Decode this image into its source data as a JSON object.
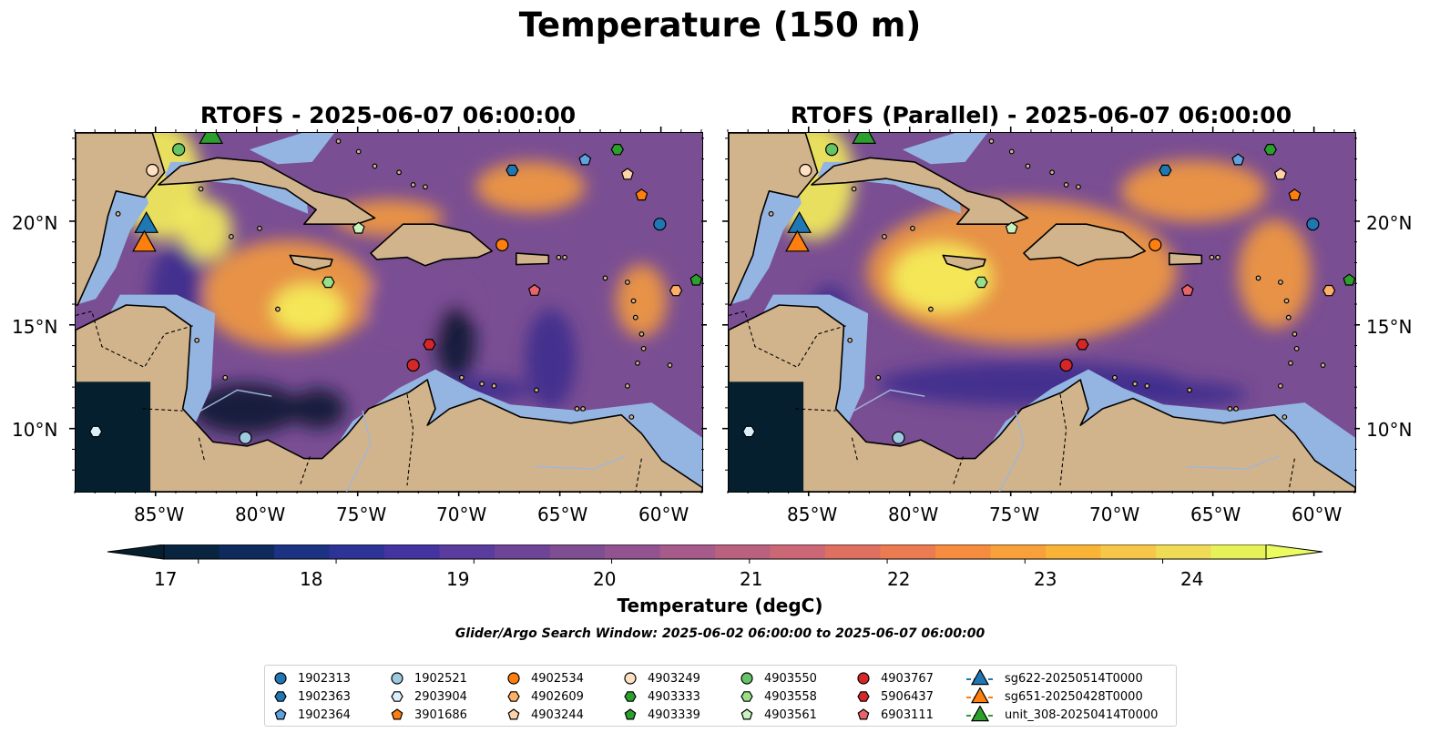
{
  "figure": {
    "suptitle": "Temperature (150 m)",
    "panels": [
      {
        "title": "RTOFS - 2025-06-07 06:00:00",
        "variant": "rtofs"
      },
      {
        "title": "RTOFS (Parallel) - 2025-06-07 06:00:00",
        "variant": "parallel"
      }
    ],
    "x_tick_labels": [
      "85°W",
      "80°W",
      "75°W",
      "70°W",
      "65°W",
      "60°W"
    ],
    "y_tick_labels": [
      "20°N",
      "15°N",
      "10°N"
    ],
    "colorbar": {
      "title": "Temperature (degC)",
      "tick_labels": [
        "17",
        "18",
        "19",
        "20",
        "21",
        "22",
        "23",
        "24"
      ],
      "colors": [
        "#08243f",
        "#0f2a5c",
        "#1c3282",
        "#2e3396",
        "#43349f",
        "#5a3b9e",
        "#6e4496",
        "#7f4d91",
        "#925490",
        "#a65b8a",
        "#b9617f",
        "#cc6875",
        "#de7062",
        "#ec7b51",
        "#f58c40",
        "#f8a039",
        "#f9b437",
        "#f6c748",
        "#f0db56",
        "#e6f258"
      ],
      "extend_low": "#061f2e",
      "extend_high": "#eafc5f"
    },
    "search_window": "Glider/Argo Search Window: 2025-06-02 06:00:00 to 2025-06-07 06:00:00"
  },
  "map": {
    "lon_range": [
      -89,
      -58
    ],
    "lat_range": [
      7,
      24.3
    ],
    "ocean_colors": {
      "deep": "#7a4e93",
      "warm": "#f39a3d",
      "hot": "#f5ef5a",
      "cold": "#0a1a33",
      "coolish": "#3d2f8e"
    },
    "shelf_color": "#94b5e2",
    "land_color": "#d2b48c"
  },
  "legend": {
    "items": [
      {
        "label": "1902313",
        "marker": "circle",
        "color": "#1f77b4"
      },
      {
        "label": "1902363",
        "marker": "hexagon",
        "color": "#1f77b4"
      },
      {
        "label": "1902364",
        "marker": "pentagon",
        "color": "#5fa2dd"
      },
      {
        "label": "1902521",
        "marker": "circle",
        "color": "#9ecae1"
      },
      {
        "label": "2903904",
        "marker": "hexagon",
        "color": "#dbeefb"
      },
      {
        "label": "3901686",
        "marker": "pentagon",
        "color": "#ff7f0e"
      },
      {
        "label": "4902534",
        "marker": "circle",
        "color": "#ff7f0e"
      },
      {
        "label": "4902609",
        "marker": "hexagon",
        "color": "#ffb064"
      },
      {
        "label": "4903244",
        "marker": "pentagon",
        "color": "#ffd3a8"
      },
      {
        "label": "4903249",
        "marker": "circle",
        "color": "#ffe0c2"
      },
      {
        "label": "4903333",
        "marker": "hexagon",
        "color": "#2ca02c"
      },
      {
        "label": "4903339",
        "marker": "pentagon",
        "color": "#2ca02c"
      },
      {
        "label": "4903550",
        "marker": "circle",
        "color": "#66c466"
      },
      {
        "label": "4903558",
        "marker": "hexagon",
        "color": "#98df8a"
      },
      {
        "label": "4903561",
        "marker": "pentagon",
        "color": "#c9f2bf"
      },
      {
        "label": "4903767",
        "marker": "circle",
        "color": "#d62728"
      },
      {
        "label": "5906437",
        "marker": "hexagon",
        "color": "#d62728"
      },
      {
        "label": "6903111",
        "marker": "pentagon",
        "color": "#e8636a"
      },
      {
        "label": "sg622-20250514T0000",
        "marker": "triangle",
        "color": "#1f77b4"
      },
      {
        "label": "sg651-20250428T0000",
        "marker": "triangle",
        "color": "#ff7f0e"
      },
      {
        "label": "unit_308-20250414T0000",
        "marker": "triangle",
        "color": "#2ca02c"
      }
    ]
  },
  "markers": [
    {
      "id": "1902313",
      "lon": -60.1,
      "lat": 19.9
    },
    {
      "id": "1902363",
      "lon": -67.4,
      "lat": 22.5
    },
    {
      "id": "1902364",
      "lon": -63.8,
      "lat": 23.0
    },
    {
      "id": "1902521",
      "lon": -80.6,
      "lat": 9.6
    },
    {
      "id": "2903904",
      "lon": -88.0,
      "lat": 9.9
    },
    {
      "id": "3901686",
      "lon": -61.0,
      "lat": 21.3
    },
    {
      "id": "4902534",
      "lon": -67.9,
      "lat": 18.9
    },
    {
      "id": "4902609",
      "lon": -59.3,
      "lat": 16.7
    },
    {
      "id": "4903244",
      "lon": -61.7,
      "lat": 22.3
    },
    {
      "id": "4903249",
      "lon": -85.2,
      "lat": 22.5
    },
    {
      "id": "4903333",
      "lon": -62.2,
      "lat": 23.5
    },
    {
      "id": "4903339",
      "lon": -58.3,
      "lat": 17.2
    },
    {
      "id": "4903550",
      "lon": -83.9,
      "lat": 23.5
    },
    {
      "id": "4903558",
      "lon": -76.5,
      "lat": 17.1
    },
    {
      "id": "4903561",
      "lon": -75.0,
      "lat": 19.7
    },
    {
      "id": "4903767",
      "lon": -72.3,
      "lat": 13.1
    },
    {
      "id": "5906437",
      "lon": -71.5,
      "lat": 14.1
    },
    {
      "id": "6903111",
      "lon": -66.3,
      "lat": 16.7
    }
  ],
  "gliders": [
    {
      "id": "sg622-20250514T0000",
      "lon": -85.5,
      "lat": 19.9
    },
    {
      "id": "sg651-20250428T0000",
      "lon": -85.6,
      "lat": 19.0
    },
    {
      "id": "unit_308-20250414T0000",
      "lon": -82.3,
      "lat": 24.2
    }
  ]
}
